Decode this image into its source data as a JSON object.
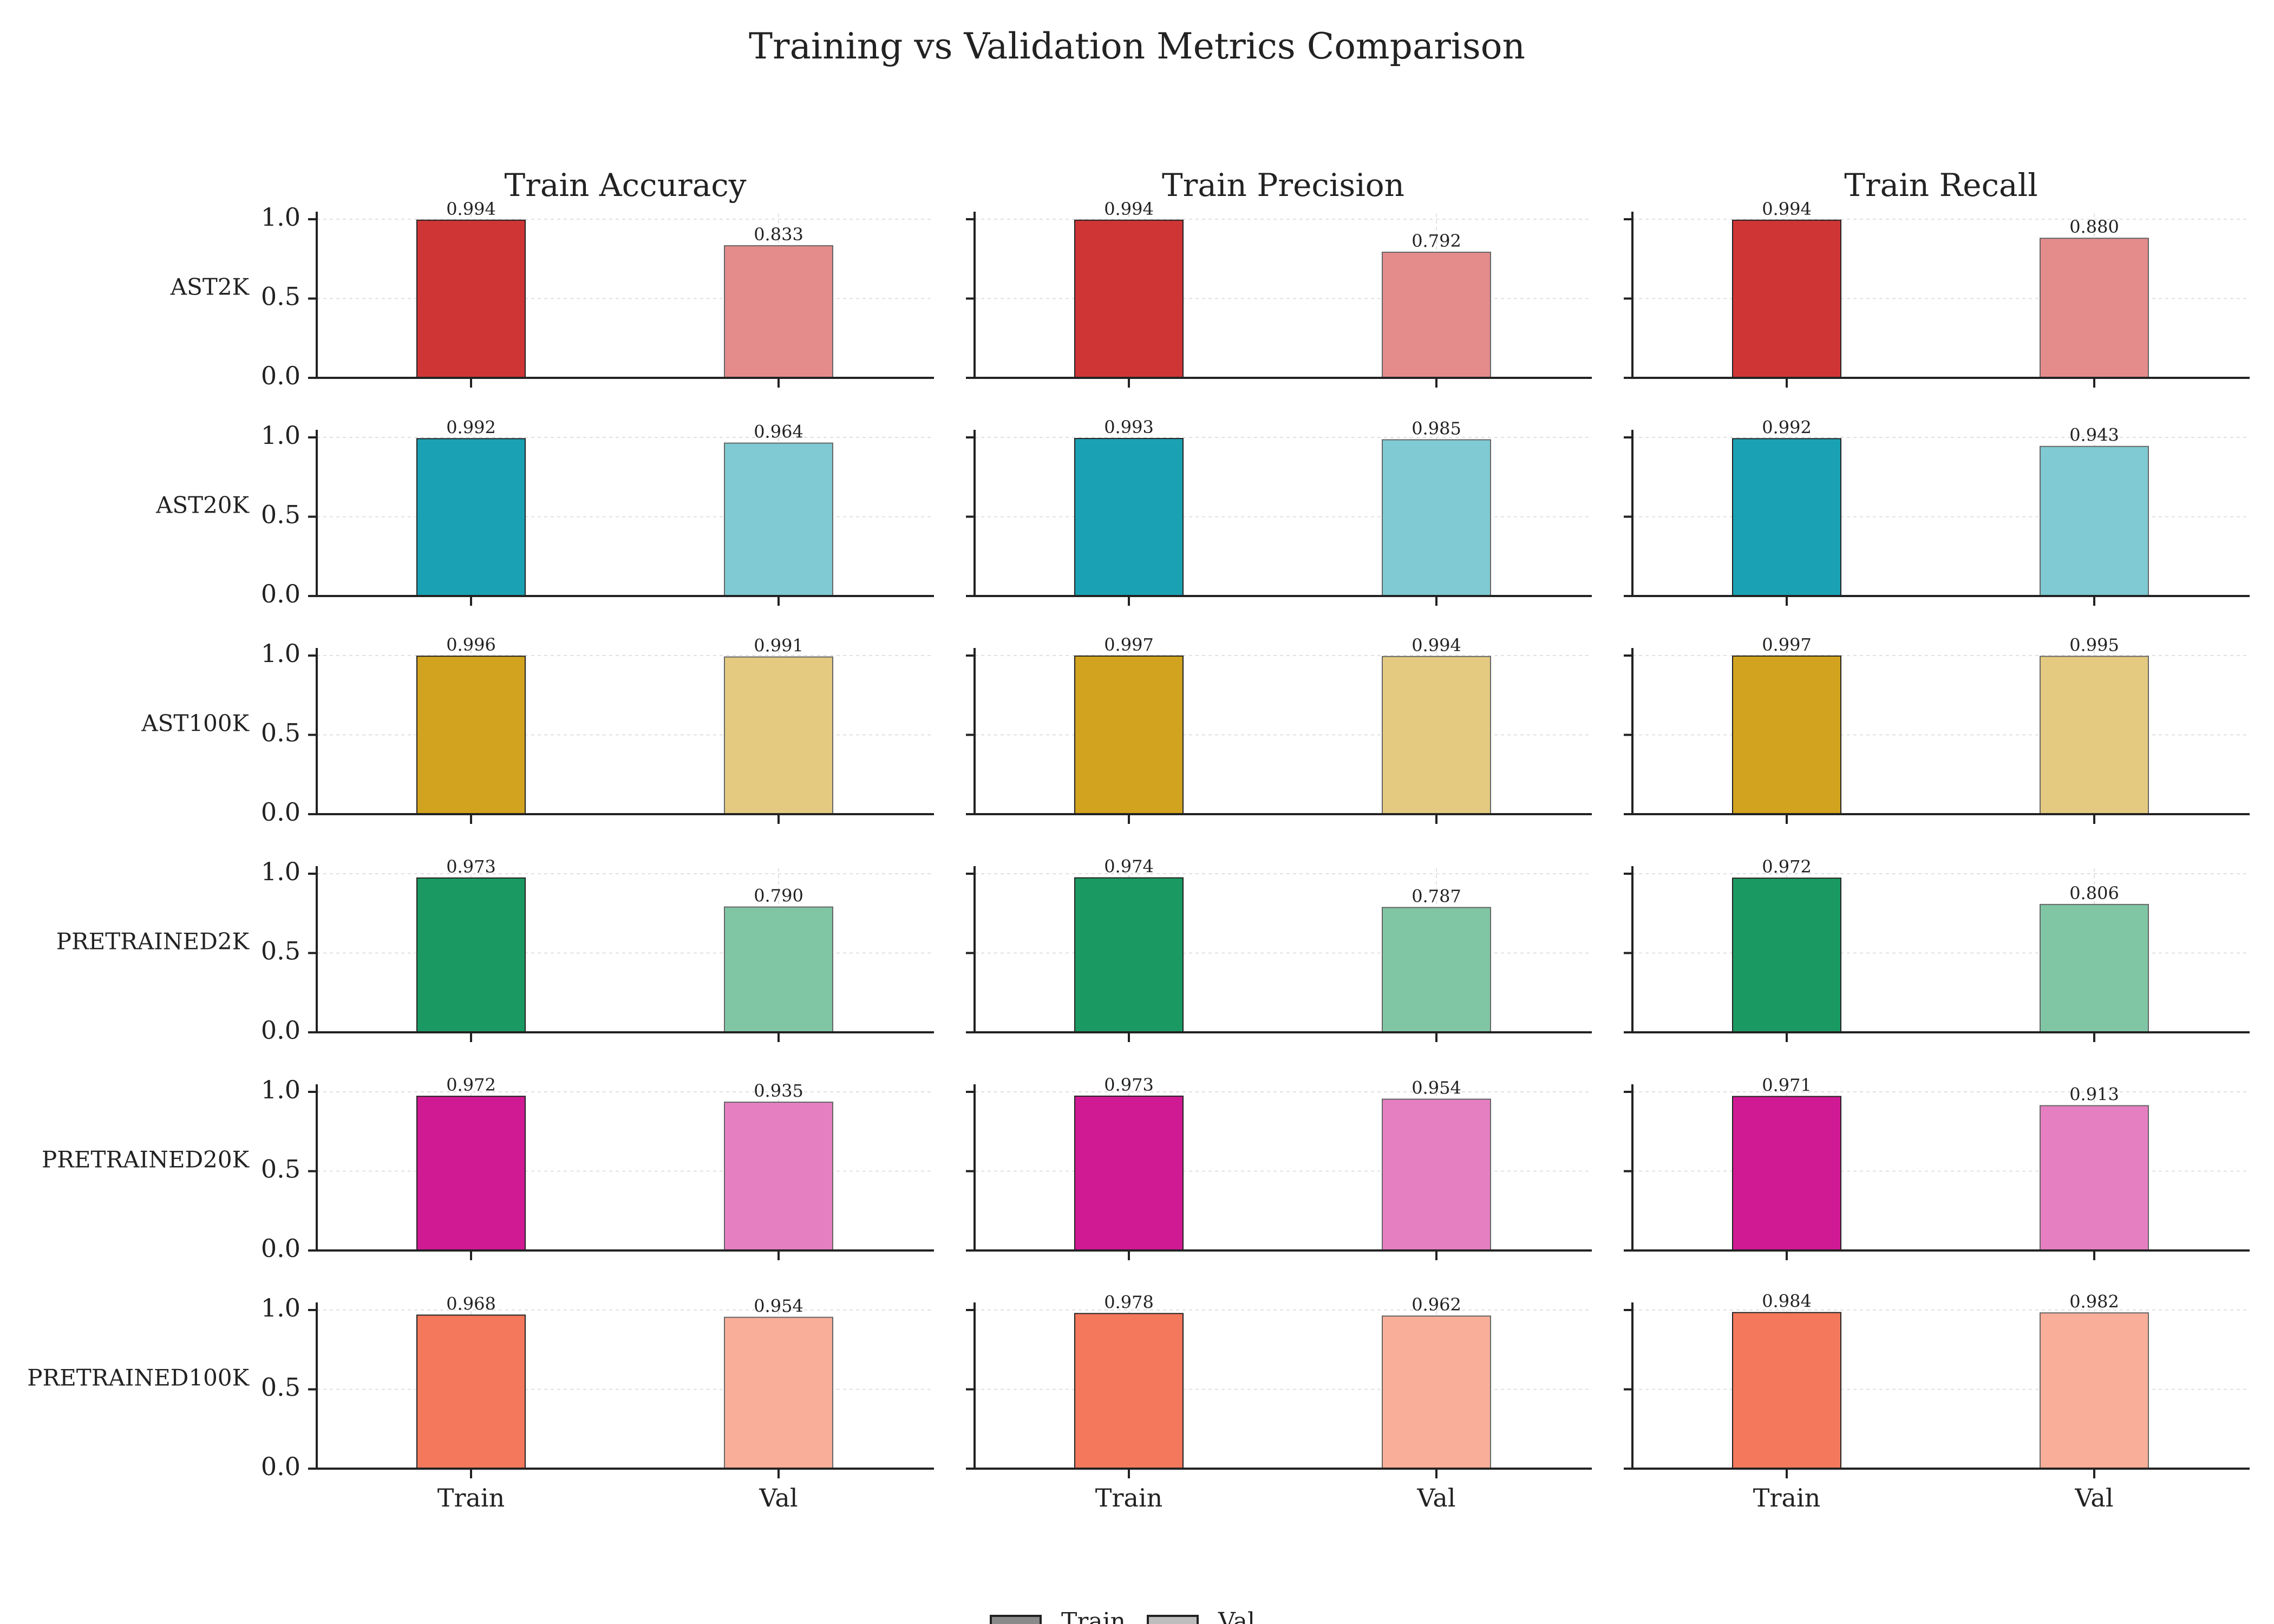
{
  "chart_data": {
    "type": "bar",
    "title": "Training vs Validation Metrics Comparison",
    "columns": [
      "Train Accuracy",
      "Train Precision",
      "Train Recall"
    ],
    "rows": [
      "AST2K",
      "AST20K",
      "AST100K",
      "PRETRAINED2K",
      "PRETRAINED20K",
      "PRETRAINED100K"
    ],
    "categories": [
      "Train",
      "Val"
    ],
    "ylim": [
      0,
      1.0
    ],
    "yticks": [
      "0.0",
      "0.5",
      "1.0"
    ],
    "grid": true,
    "legend": {
      "placement": "bottom-center",
      "entries": [
        "Train",
        "Val"
      ]
    },
    "row_colors": {
      "train": [
        "#d03536",
        "#1aa2b4",
        "#d2a31f",
        "#1a9a62",
        "#d01a94",
        "#f3785c"
      ],
      "val": [
        "#e48b8c",
        "#7fcad3",
        "#e4ca80",
        "#80c6a4",
        "#e57fc2",
        "#f8ae99"
      ]
    },
    "values": [
      [
        [
          0.994,
          0.833
        ],
        [
          0.994,
          0.792
        ],
        [
          0.994,
          0.88
        ]
      ],
      [
        [
          0.992,
          0.964
        ],
        [
          0.993,
          0.985
        ],
        [
          0.992,
          0.943
        ]
      ],
      [
        [
          0.996,
          0.991
        ],
        [
          0.997,
          0.994
        ],
        [
          0.997,
          0.995
        ]
      ],
      [
        [
          0.973,
          0.79
        ],
        [
          0.974,
          0.787
        ],
        [
          0.972,
          0.806
        ]
      ],
      [
        [
          0.972,
          0.935
        ],
        [
          0.973,
          0.954
        ],
        [
          0.971,
          0.913
        ]
      ],
      [
        [
          0.968,
          0.954
        ],
        [
          0.978,
          0.962
        ],
        [
          0.984,
          0.982
        ]
      ]
    ]
  }
}
